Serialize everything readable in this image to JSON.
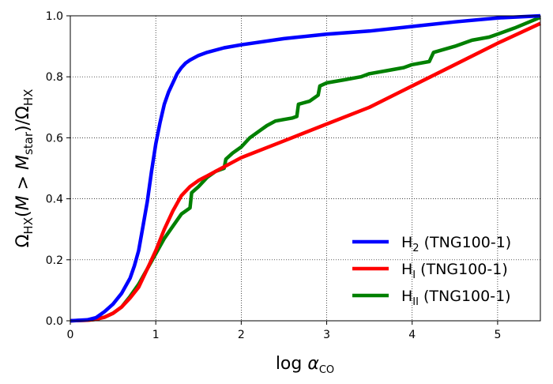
{
  "chart_data": {
    "type": "line",
    "xlabel": {
      "main": "log ",
      "symbol": "α",
      "sub": "CO"
    },
    "ylabel": {
      "omega1": "Ω",
      "sub1": "HX",
      "mid1": "(",
      "M1": "M",
      "gt": " > ",
      "M2": "M",
      "sub2": "star",
      "mid2": ")/",
      "omega2": "Ω",
      "sub3": "HX"
    },
    "xlim": [
      0,
      5.5
    ],
    "ylim": [
      0,
      1.0
    ],
    "xticks": [
      0,
      1,
      2,
      3,
      4,
      5
    ],
    "yticks": [
      0.0,
      0.2,
      0.4,
      0.6,
      0.8,
      1.0
    ],
    "xtick_labels": [
      "0",
      "1",
      "2",
      "3",
      "4",
      "5"
    ],
    "ytick_labels": [
      "0.0",
      "0.2",
      "0.4",
      "0.6",
      "0.8",
      "1.0"
    ],
    "grid": true,
    "legend_position": "bottom-right",
    "series": [
      {
        "name": "H2 (TNG100-1)",
        "legend": {
          "base": "H",
          "sub": "2",
          "rest": " (TNG100-1)"
        },
        "color": "#0000ff",
        "x": [
          0,
          0.2,
          0.3,
          0.4,
          0.5,
          0.6,
          0.7,
          0.75,
          0.8,
          0.85,
          0.9,
          0.95,
          1.0,
          1.05,
          1.1,
          1.15,
          1.2,
          1.25,
          1.3,
          1.35,
          1.4,
          1.5,
          1.6,
          1.8,
          2.0,
          2.5,
          3.0,
          3.5,
          4.0,
          4.5,
          5.0,
          5.5
        ],
        "y": [
          0,
          0.003,
          0.01,
          0.03,
          0.055,
          0.09,
          0.14,
          0.18,
          0.23,
          0.31,
          0.39,
          0.49,
          0.58,
          0.65,
          0.71,
          0.75,
          0.78,
          0.81,
          0.83,
          0.845,
          0.855,
          0.87,
          0.88,
          0.895,
          0.905,
          0.925,
          0.94,
          0.95,
          0.965,
          0.98,
          0.993,
          1.0
        ]
      },
      {
        "name": "HI (TNG100-1)",
        "legend": {
          "base": "H",
          "sub": "I",
          "rest": " (TNG100-1)"
        },
        "color": "#ff0000",
        "x": [
          0,
          0.2,
          0.3,
          0.4,
          0.5,
          0.6,
          0.7,
          0.8,
          0.9,
          1.0,
          1.1,
          1.2,
          1.3,
          1.4,
          1.5,
          1.6,
          1.7,
          1.8,
          1.9,
          2.0,
          2.5,
          3.0,
          3.5,
          4.0,
          4.5,
          5.0,
          5.5
        ],
        "y": [
          0,
          0.002,
          0.005,
          0.012,
          0.025,
          0.045,
          0.075,
          0.11,
          0.17,
          0.23,
          0.3,
          0.36,
          0.41,
          0.44,
          0.46,
          0.475,
          0.49,
          0.505,
          0.52,
          0.535,
          0.59,
          0.645,
          0.7,
          0.77,
          0.84,
          0.91,
          0.975
        ]
      },
      {
        "name": "HII (TNG100-1)",
        "legend": {
          "base": "H",
          "sub": "II",
          "rest": " (TNG100-1)"
        },
        "color": "#008000",
        "x": [
          0,
          0.2,
          0.3,
          0.4,
          0.5,
          0.6,
          0.7,
          0.8,
          0.9,
          1.0,
          1.1,
          1.2,
          1.3,
          1.4,
          1.42,
          1.5,
          1.6,
          1.7,
          1.8,
          1.82,
          1.9,
          2.0,
          2.1,
          2.2,
          2.3,
          2.4,
          2.5,
          2.6,
          2.65,
          2.67,
          2.8,
          2.9,
          2.92,
          3.0,
          3.2,
          3.4,
          3.5,
          3.7,
          3.9,
          4.0,
          4.2,
          4.25,
          4.5,
          4.7,
          4.9,
          5.0,
          5.2,
          5.5
        ],
        "y": [
          0,
          0.002,
          0.005,
          0.012,
          0.025,
          0.045,
          0.08,
          0.12,
          0.17,
          0.22,
          0.27,
          0.31,
          0.35,
          0.37,
          0.42,
          0.44,
          0.47,
          0.49,
          0.5,
          0.53,
          0.55,
          0.57,
          0.6,
          0.62,
          0.64,
          0.655,
          0.66,
          0.665,
          0.67,
          0.71,
          0.72,
          0.74,
          0.77,
          0.78,
          0.79,
          0.8,
          0.81,
          0.82,
          0.83,
          0.84,
          0.85,
          0.88,
          0.9,
          0.92,
          0.93,
          0.94,
          0.96,
          0.995
        ]
      }
    ]
  }
}
